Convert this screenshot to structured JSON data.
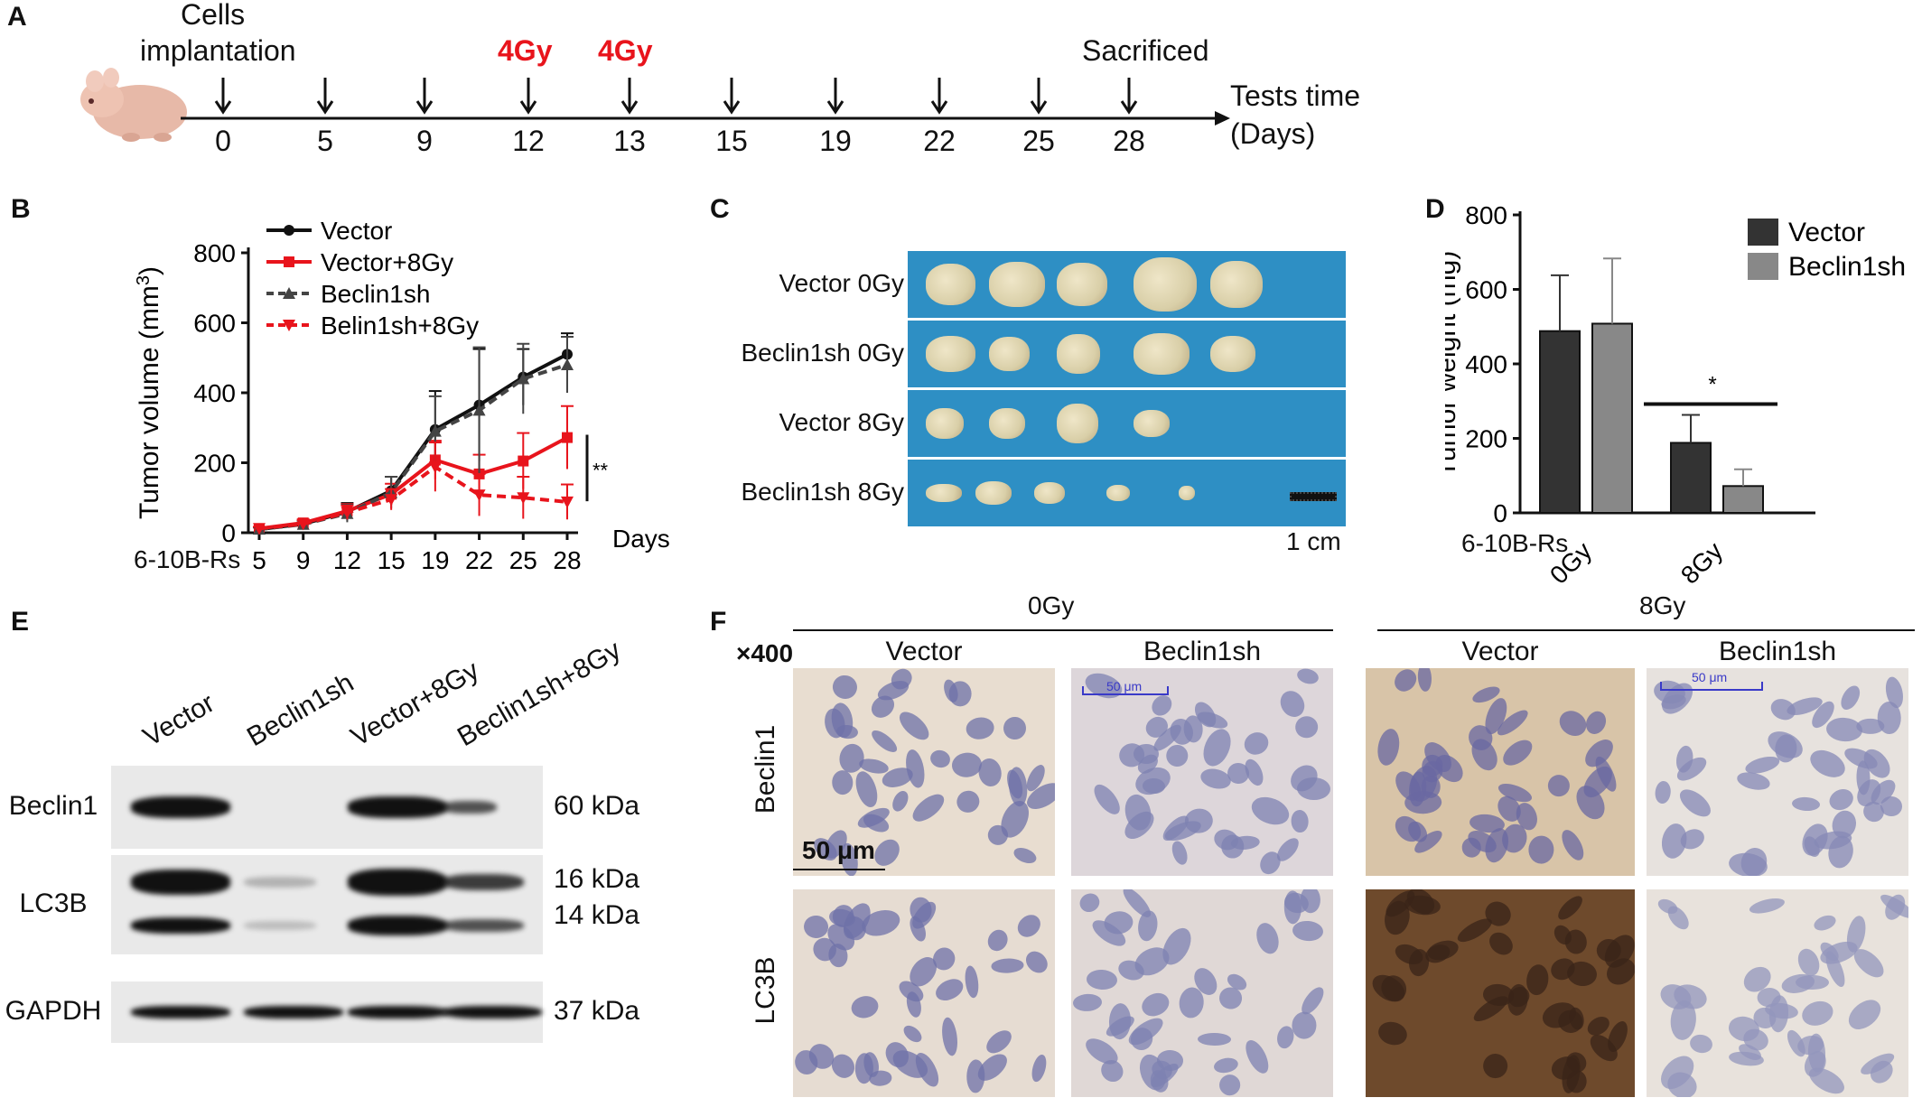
{
  "panels": {
    "A": "A",
    "B": "B",
    "C": "C",
    "D": "D",
    "E": "E",
    "F": "F"
  },
  "timeline": {
    "label_implant_1": "Cells",
    "label_implant_2": "implantation",
    "ir1": "4Gy",
    "ir2": "4Gy",
    "sacrificed": "Sacrificed",
    "axis_title_1": "Tests time",
    "axis_title_2": "(Days)",
    "days": [
      "0",
      "5",
      "9",
      "12",
      "13",
      "15",
      "19",
      "22",
      "25",
      "28"
    ],
    "ir_color": "#e8141c"
  },
  "chart_data": [
    {
      "type": "line",
      "panel": "B",
      "ylabel": "Tumor volume (mm",
      "ylabel_sup": "3",
      "ylabel_close": ")",
      "xlabel": "Days",
      "x_prefix": "6-10B-Rs",
      "x": [
        5,
        9,
        12,
        15,
        19,
        22,
        25,
        28
      ],
      "x_ticks": [
        "5",
        "9",
        "12",
        "15",
        "19",
        "22",
        "25",
        "28"
      ],
      "y_ticks": [
        "0",
        "200",
        "400",
        "600",
        "800"
      ],
      "ylim": [
        0,
        800
      ],
      "series": [
        {
          "name": "Vector",
          "color": "#111111",
          "marker": "circle",
          "dash": false,
          "values": [
            10,
            25,
            60,
            120,
            295,
            365,
            445,
            510
          ],
          "err": [
            5,
            10,
            25,
            40,
            110,
            160,
            80,
            60
          ]
        },
        {
          "name": "Vector+8Gy",
          "color": "#e8141c",
          "marker": "square",
          "dash": false,
          "values": [
            12,
            28,
            62,
            110,
            208,
            168,
            205,
            272
          ],
          "err": [
            5,
            10,
            20,
            30,
            55,
            55,
            80,
            90
          ]
        },
        {
          "name": "Beclin1sh",
          "color": "#444444",
          "marker": "triangle",
          "dash": true,
          "values": [
            10,
            24,
            55,
            115,
            290,
            350,
            440,
            480
          ],
          "err": [
            5,
            10,
            25,
            45,
            100,
            180,
            100,
            80
          ]
        },
        {
          "name": "Belin1sh+8Gy",
          "color": "#e8141c",
          "marker": "tri-down",
          "dash": true,
          "values": [
            12,
            25,
            58,
            95,
            188,
            108,
            100,
            88
          ],
          "err": [
            5,
            10,
            20,
            30,
            70,
            60,
            60,
            50
          ]
        }
      ],
      "annotation": "**"
    },
    {
      "type": "bar",
      "panel": "D",
      "ylabel": "Tumor weight (mg)",
      "x_prefix": "6-10B-Rs",
      "categories": [
        "0Gy",
        "8Gy"
      ],
      "y_ticks": [
        "0",
        "200",
        "400",
        "600",
        "800"
      ],
      "ylim": [
        0,
        800
      ],
      "series": [
        {
          "name": "Vector",
          "color": "#333333",
          "values": [
            488,
            188
          ],
          "err": [
            150,
            75
          ]
        },
        {
          "name": "Beclin1sh",
          "color": "#888888",
          "values": [
            508,
            72
          ],
          "err": [
            175,
            45
          ]
        }
      ],
      "annotation": "*"
    }
  ],
  "panel_c": {
    "rows": [
      "Vector 0Gy",
      "Beclin1sh 0Gy",
      "Vector 8Gy",
      "Beclin1sh 8Gy"
    ],
    "counts": [
      5,
      5,
      4,
      5
    ],
    "scale": "1 cm",
    "bg_color": "#2e8fc4",
    "tumor_color": "#d9cfa8"
  },
  "panel_e": {
    "lanes": [
      "Vector",
      "Beclin1sh",
      "Vector+8Gy",
      "Beclin1sh+8Gy"
    ],
    "rows": [
      {
        "name": "Beclin1",
        "mw": [
          "60 kDa"
        ]
      },
      {
        "name": "LC3B",
        "mw": [
          "16 kDa",
          "14 kDa"
        ]
      },
      {
        "name": "GAPDH",
        "mw": [
          "37 kDa"
        ]
      }
    ]
  },
  "panel_f": {
    "mag": "×400",
    "groups": [
      "0Gy",
      "8Gy"
    ],
    "cols": [
      "Vector",
      "Beclin1sh",
      "Vector",
      "Beclin1sh"
    ],
    "rows": [
      "Beclin1",
      "LC3B"
    ],
    "scale_big": "50 μm",
    "scale_small": "50 μm"
  }
}
